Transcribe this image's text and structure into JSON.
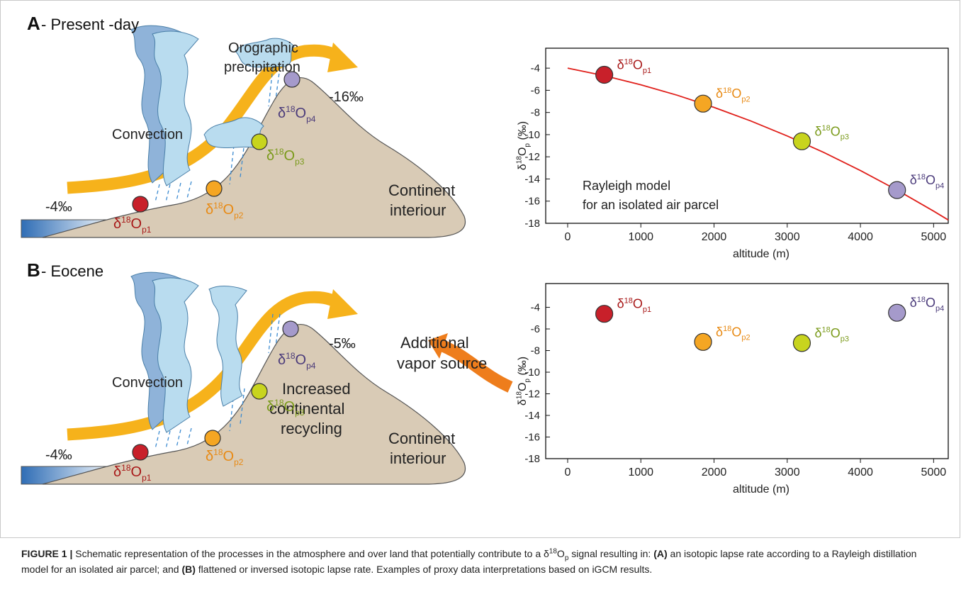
{
  "panels": [
    {
      "letter": "A",
      "title": "- Present -day",
      "orographic": [
        "Orographic",
        "precipitation"
      ],
      "convection": "Convection",
      "start": "-4‰",
      "end": "-16‰",
      "continent": [
        "Continent",
        "interiour"
      ],
      "points": [
        {
          "d": "δ",
          "sup": "18",
          "o": "O",
          "sub": "p1"
        },
        {
          "d": "δ",
          "sup": "18",
          "o": "O",
          "sub": "p2"
        },
        {
          "d": "δ",
          "sup": "18",
          "o": "O",
          "sub": "p3"
        },
        {
          "d": "δ",
          "sup": "18",
          "o": "O",
          "sub": "p4"
        }
      ]
    },
    {
      "letter": "B",
      "title": "- Eocene",
      "convection": "Convection",
      "start": "-4‰",
      "end": "-5‰",
      "continent": [
        "Continent",
        "interiour"
      ],
      "recycling": [
        "Increased",
        "continental",
        "recycling"
      ],
      "vapor": [
        "Additional",
        "vapor source"
      ],
      "points": [
        {
          "d": "δ",
          "sup": "18",
          "o": "O",
          "sub": "p1"
        },
        {
          "d": "δ",
          "sup": "18",
          "o": "O",
          "sub": "p2"
        },
        {
          "d": "δ",
          "sup": "18",
          "o": "O",
          "sub": "p3"
        },
        {
          "d": "δ",
          "sup": "18",
          "o": "O",
          "sub": "p4"
        }
      ]
    }
  ],
  "chart_data": [
    {
      "type": "scatter",
      "x_label": "altitude (m)",
      "y_label": {
        "d": "δ",
        "sup": "18",
        "o": "O",
        "sub": "p",
        "unit": " (‰)"
      },
      "annotation": [
        "Rayleigh model",
        "for an isolated air parcel"
      ],
      "x": [
        500,
        1850,
        3200,
        4500
      ],
      "values": [
        -4.6,
        -7.2,
        -10.6,
        -15.0
      ],
      "colors": [
        "#c8202a",
        "#f5a623",
        "#c8d41e",
        "#a59acb"
      ],
      "label_colors": [
        "#a81818",
        "#e88a14",
        "#7a9a1a",
        "#4a3a7a"
      ],
      "point_labels": [
        {
          "d": "δ",
          "sup": "18",
          "o": "O",
          "sub": "p1"
        },
        {
          "d": "δ",
          "sup": "18",
          "o": "O",
          "sub": "p2"
        },
        {
          "d": "δ",
          "sup": "18",
          "o": "O",
          "sub": "p3"
        },
        {
          "d": "δ",
          "sup": "18",
          "o": "O",
          "sub": "p4"
        }
      ],
      "series": [
        {
          "type": "line",
          "color": "#e0201b",
          "x": [
            0,
            500,
            1000,
            1500,
            2000,
            2500,
            3000,
            3500,
            4000,
            4500,
            5000,
            5200
          ],
          "values": [
            -4,
            -4.68,
            -5.5,
            -6.45,
            -7.54,
            -8.76,
            -10.12,
            -11.61,
            -13.24,
            -15.0,
            -16.9,
            -17.7
          ]
        }
      ],
      "xlim": [
        -300,
        5200
      ],
      "ylim": [
        -18,
        -2.2
      ],
      "xticks": [
        0,
        1000,
        2000,
        3000,
        4000,
        5000
      ],
      "yticks": [
        -4,
        -6,
        -8,
        -10,
        -12,
        -14,
        -16,
        -18
      ]
    },
    {
      "type": "scatter",
      "x_label": "altitude (m)",
      "y_label": {
        "d": "δ",
        "sup": "18",
        "o": "O",
        "sub": "p",
        "unit": " (‰)"
      },
      "x": [
        500,
        1850,
        3200,
        4500
      ],
      "values": [
        -4.6,
        -7.2,
        -7.3,
        -4.5
      ],
      "colors": [
        "#c8202a",
        "#f5a623",
        "#c8d41e",
        "#a59acb"
      ],
      "label_colors": [
        "#a81818",
        "#e88a14",
        "#7a9a1a",
        "#4a3a7a"
      ],
      "point_labels": [
        {
          "d": "δ",
          "sup": "18",
          "o": "O",
          "sub": "p1"
        },
        {
          "d": "δ",
          "sup": "18",
          "o": "O",
          "sub": "p2"
        },
        {
          "d": "δ",
          "sup": "18",
          "o": "O",
          "sub": "p3"
        },
        {
          "d": "δ",
          "sup": "18",
          "o": "O",
          "sub": "p4"
        }
      ],
      "series": [],
      "xlim": [
        -300,
        5200
      ],
      "ylim": [
        -18,
        -1.8
      ],
      "xticks": [
        0,
        1000,
        2000,
        3000,
        4000,
        5000
      ],
      "yticks": [
        -4,
        -6,
        -8,
        -10,
        -12,
        -14,
        -16,
        -18
      ]
    }
  ],
  "caption": [
    "FIGURE 1 |",
    " Schematic representation of the processes in the atmosphere and over land that potentially contribute to a ",
    "δ",
    "18",
    "O",
    "p",
    " signal resulting in: ",
    "(A)",
    " an isotopic lapse rate according to a Rayleigh distillation model for an isolated air parcel; and ",
    "(B)",
    " flattened or inversed isotopic lapse rate. Examples of proxy data interpretations based on iGCM results."
  ]
}
